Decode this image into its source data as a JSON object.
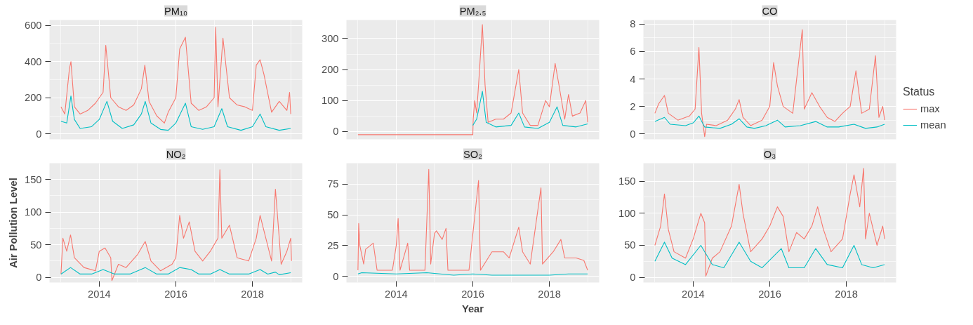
{
  "chart_data": [
    {
      "type": "line",
      "title": "PM₁₀",
      "legend": "right",
      "legend_title": "Status",
      "xlim": [
        2012.7,
        2019.3
      ],
      "ylim": [
        -30,
        630
      ],
      "xticks": [
        2014,
        2016,
        2018
      ],
      "yticks": [
        0,
        200,
        400,
        600
      ],
      "grid": true,
      "tick_labels": "y",
      "series": [
        {
          "name": "max",
          "color": "#f8766d",
          "x": [
            2013.0,
            2013.1,
            2013.22,
            2013.26,
            2013.35,
            2013.5,
            2013.7,
            2013.9,
            2014.0,
            2014.1,
            2014.17,
            2014.3,
            2014.5,
            2014.7,
            2014.9,
            2015.1,
            2015.19,
            2015.3,
            2015.5,
            2015.7,
            2015.8,
            2016.0,
            2016.1,
            2016.25,
            2016.4,
            2016.6,
            2016.8,
            2017.0,
            2017.04,
            2017.1,
            2017.23,
            2017.4,
            2017.6,
            2017.8,
            2018.0,
            2018.1,
            2018.2,
            2018.3,
            2018.5,
            2018.7,
            2018.9,
            2018.97,
            2019.0
          ],
          "values": [
            150,
            110,
            360,
            400,
            150,
            110,
            130,
            170,
            200,
            230,
            490,
            200,
            150,
            130,
            160,
            250,
            380,
            180,
            100,
            60,
            120,
            200,
            470,
            535,
            170,
            130,
            150,
            200,
            590,
            150,
            530,
            200,
            160,
            150,
            130,
            380,
            410,
            330,
            120,
            180,
            130,
            230,
            110
          ]
        },
        {
          "name": "mean",
          "color": "#00bfc4",
          "x": [
            2013.0,
            2013.15,
            2013.26,
            2013.35,
            2013.5,
            2013.8,
            2014.0,
            2014.2,
            2014.35,
            2014.6,
            2014.9,
            2015.1,
            2015.2,
            2015.35,
            2015.6,
            2015.8,
            2016.0,
            2016.25,
            2016.4,
            2016.7,
            2017.0,
            2017.2,
            2017.35,
            2017.7,
            2018.0,
            2018.2,
            2018.35,
            2018.7,
            2019.0
          ],
          "values": [
            70,
            60,
            210,
            80,
            30,
            40,
            80,
            180,
            70,
            30,
            50,
            110,
            180,
            60,
            25,
            20,
            60,
            170,
            40,
            25,
            40,
            140,
            40,
            20,
            40,
            110,
            40,
            20,
            30
          ]
        }
      ]
    },
    {
      "type": "line",
      "title": "PM₂.₅",
      "xlim": [
        2012.7,
        2019.3
      ],
      "ylim": [
        -25,
        360
      ],
      "xticks": [
        2014,
        2016,
        2018
      ],
      "yticks": [
        0,
        100,
        200,
        300
      ],
      "grid": true,
      "tick_labels": "y",
      "series": [
        {
          "color": "#f8766d",
          "x": [
            2013.0,
            2016.0,
            2016.01,
            2016.05,
            2016.1,
            2016.15,
            2016.25,
            2016.32,
            2016.4,
            2016.6,
            2016.8,
            2017.0,
            2017.2,
            2017.3,
            2017.5,
            2017.7,
            2017.9,
            2018.0,
            2018.15,
            2018.25,
            2018.4,
            2018.5,
            2018.6,
            2018.8,
            2018.95,
            2019.0
          ],
          "values": [
            -10,
            -10,
            40,
            100,
            60,
            150,
            345,
            150,
            30,
            40,
            40,
            60,
            200,
            60,
            20,
            20,
            100,
            80,
            220,
            150,
            40,
            120,
            50,
            60,
            100,
            30
          ]
        },
        {
          "color": "#00bfc4",
          "x": [
            2016.0,
            2016.1,
            2016.25,
            2016.35,
            2016.6,
            2017.0,
            2017.2,
            2017.35,
            2017.7,
            2018.0,
            2018.2,
            2018.35,
            2018.7,
            2019.0
          ],
          "values": [
            20,
            40,
            130,
            30,
            15,
            20,
            60,
            15,
            10,
            30,
            80,
            20,
            15,
            25
          ]
        }
      ]
    },
    {
      "type": "line",
      "title": "CO",
      "xlim": [
        2012.7,
        2019.3
      ],
      "ylim": [
        -0.4,
        8.3
      ],
      "xticks": [
        2014,
        2016,
        2018
      ],
      "yticks": [
        0,
        2,
        4,
        6,
        8
      ],
      "grid": true,
      "tick_labels": "y",
      "series": [
        {
          "color": "#f8766d",
          "x": [
            2013.0,
            2013.1,
            2013.25,
            2013.35,
            2013.6,
            2013.9,
            2014.05,
            2014.15,
            2014.22,
            2014.3,
            2014.35,
            2014.6,
            2014.9,
            2015.1,
            2015.2,
            2015.3,
            2015.5,
            2015.8,
            2016.0,
            2016.1,
            2016.2,
            2016.35,
            2016.6,
            2016.85,
            2016.9,
            2017.1,
            2017.3,
            2017.5,
            2017.7,
            2017.9,
            2018.1,
            2018.25,
            2018.4,
            2018.6,
            2018.76,
            2018.85,
            2018.95,
            2019.0
          ],
          "values": [
            1.5,
            2.2,
            2.8,
            1.5,
            1.0,
            1.3,
            1.8,
            6.3,
            1.5,
            -0.2,
            0.7,
            0.6,
            1.0,
            1.8,
            2.5,
            1.2,
            0.6,
            1.0,
            2.0,
            5.2,
            3.5,
            2.0,
            1.5,
            7.6,
            1.8,
            3.0,
            2.0,
            1.2,
            0.9,
            1.5,
            2.0,
            4.6,
            1.5,
            1.8,
            5.7,
            1.2,
            2.0,
            1.0
          ]
        },
        {
          "color": "#00bfc4",
          "x": [
            2013.0,
            2013.25,
            2013.4,
            2013.8,
            2014.0,
            2014.15,
            2014.3,
            2014.7,
            2015.0,
            2015.2,
            2015.4,
            2015.6,
            2015.9,
            2016.2,
            2016.4,
            2016.8,
            2017.2,
            2017.5,
            2017.8,
            2018.2,
            2018.5,
            2018.8,
            2019.0
          ],
          "values": [
            0.9,
            1.2,
            0.7,
            0.6,
            0.8,
            1.3,
            0.5,
            0.4,
            0.7,
            1.1,
            0.5,
            0.4,
            0.6,
            1.0,
            0.5,
            0.6,
            0.9,
            0.5,
            0.5,
            0.7,
            0.4,
            0.5,
            0.7
          ]
        }
      ]
    },
    {
      "type": "line",
      "title": "NO₂",
      "ylabel": "Air Pollution Level",
      "xlim": [
        2012.7,
        2019.3
      ],
      "ylim": [
        -8,
        175
      ],
      "xticks": [
        2014,
        2016,
        2018
      ],
      "yticks": [
        0,
        50,
        100,
        150
      ],
      "grid": true,
      "series": [
        {
          "color": "#f8766d",
          "x": [
            2013.0,
            2013.05,
            2013.15,
            2013.25,
            2013.35,
            2013.6,
            2013.9,
            2014.0,
            2014.15,
            2014.3,
            2014.33,
            2014.5,
            2014.7,
            2015.0,
            2015.2,
            2015.35,
            2015.6,
            2015.9,
            2016.0,
            2016.1,
            2016.2,
            2016.35,
            2016.5,
            2016.7,
            2016.9,
            2017.0,
            2017.1,
            2017.15,
            2017.2,
            2017.4,
            2017.6,
            2017.9,
            2018.1,
            2018.2,
            2018.35,
            2018.5,
            2018.6,
            2018.7,
            2018.75,
            2018.9,
            2019.0,
            2019.02
          ],
          "values": [
            5,
            60,
            40,
            65,
            30,
            15,
            10,
            40,
            45,
            30,
            -5,
            20,
            15,
            35,
            55,
            25,
            10,
            20,
            30,
            95,
            60,
            85,
            40,
            25,
            40,
            50,
            60,
            165,
            60,
            80,
            30,
            25,
            60,
            95,
            60,
            25,
            135,
            60,
            20,
            40,
            60,
            25
          ]
        },
        {
          "color": "#00bfc4",
          "x": [
            2013.0,
            2013.25,
            2013.5,
            2013.8,
            2014.1,
            2014.4,
            2014.8,
            2015.2,
            2015.5,
            2015.8,
            2016.1,
            2016.4,
            2016.6,
            2016.9,
            2017.15,
            2017.4,
            2017.9,
            2018.2,
            2018.4,
            2018.6,
            2018.7,
            2019.0
          ],
          "values": [
            5,
            15,
            5,
            5,
            12,
            5,
            5,
            15,
            5,
            5,
            15,
            12,
            5,
            5,
            12,
            5,
            5,
            12,
            5,
            8,
            4,
            7
          ]
        }
      ]
    },
    {
      "type": "line",
      "title": "SO₂",
      "xlabel": "Year",
      "xlim": [
        2012.7,
        2019.3
      ],
      "ylim": [
        -5,
        92
      ],
      "xticks": [
        2014,
        2016,
        2018
      ],
      "yticks": [
        0,
        25,
        50,
        75
      ],
      "grid": true,
      "series": [
        {
          "color": "#f8766d",
          "x": [
            2013.0,
            2013.02,
            2013.05,
            2013.15,
            2013.2,
            2013.4,
            2013.5,
            2013.9,
            2014.0,
            2014.05,
            2014.1,
            2014.3,
            2014.35,
            2014.75,
            2014.85,
            2014.9,
            2015.0,
            2015.05,
            2015.2,
            2015.3,
            2015.35,
            2015.9,
            2016.15,
            2016.2,
            2016.5,
            2016.8,
            2016.95,
            2017.1,
            2017.2,
            2017.3,
            2017.5,
            2017.78,
            2017.82,
            2018.1,
            2018.3,
            2018.4,
            2018.7,
            2018.9,
            2019.0
          ],
          "values": [
            5,
            43,
            25,
            10,
            22,
            27,
            5,
            5,
            25,
            47,
            5,
            27,
            5,
            5,
            87,
            10,
            35,
            37,
            30,
            39,
            5,
            5,
            78,
            5,
            20,
            20,
            15,
            30,
            40,
            20,
            10,
            72,
            10,
            20,
            30,
            15,
            15,
            13,
            5
          ]
        },
        {
          "color": "#00bfc4",
          "x": [
            2013.0,
            2013.1,
            2014.0,
            2014.8,
            2015.5,
            2016.0,
            2016.5,
            2017.0,
            2017.5,
            2018.0,
            2018.5,
            2019.0
          ],
          "values": [
            2,
            3,
            2,
            3,
            1,
            2,
            1,
            1,
            1,
            1,
            2,
            2
          ]
        }
      ]
    },
    {
      "type": "line",
      "title": "O₃",
      "xlim": [
        2012.7,
        2019.3
      ],
      "ylim": [
        -8,
        178
      ],
      "xticks": [
        2014,
        2016,
        2018
      ],
      "yticks": [
        0,
        50,
        100,
        150
      ],
      "grid": true,
      "series": [
        {
          "color": "#f8766d",
          "x": [
            2013.0,
            2013.15,
            2013.25,
            2013.35,
            2013.5,
            2013.8,
            2014.0,
            2014.2,
            2014.3,
            2014.33,
            2014.5,
            2014.7,
            2015.0,
            2015.2,
            2015.3,
            2015.5,
            2015.8,
            2016.0,
            2016.2,
            2016.35,
            2016.5,
            2016.7,
            2016.9,
            2017.1,
            2017.25,
            2017.4,
            2017.6,
            2017.9,
            2018.1,
            2018.2,
            2018.35,
            2018.45,
            2018.5,
            2018.6,
            2018.8,
            2018.95,
            2019.0
          ],
          "values": [
            50,
            80,
            130,
            75,
            40,
            30,
            60,
            100,
            85,
            2,
            30,
            40,
            80,
            145,
            100,
            40,
            60,
            80,
            110,
            95,
            40,
            70,
            60,
            80,
            110,
            75,
            40,
            60,
            130,
            160,
            110,
            170,
            60,
            100,
            50,
            80,
            60
          ]
        },
        {
          "color": "#00bfc4",
          "x": [
            2013.0,
            2013.25,
            2013.45,
            2013.8,
            2014.2,
            2014.5,
            2014.8,
            2015.2,
            2015.5,
            2015.8,
            2016.3,
            2016.5,
            2016.9,
            2017.2,
            2017.5,
            2017.9,
            2018.2,
            2018.4,
            2018.7,
            2019.0
          ],
          "values": [
            25,
            55,
            30,
            20,
            50,
            20,
            15,
            55,
            25,
            15,
            45,
            15,
            15,
            45,
            20,
            15,
            50,
            20,
            15,
            20
          ]
        }
      ]
    }
  ]
}
